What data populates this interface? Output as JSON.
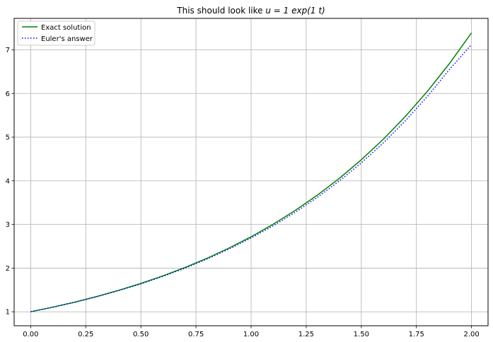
{
  "chart_data": {
    "type": "line",
    "title_prefix": "This should look like ",
    "title_math": "u = 1 exp(1 t)",
    "xlabel": "",
    "ylabel": "",
    "xlim": [
      -0.075,
      2.075
    ],
    "ylim": [
      0.68,
      7.72
    ],
    "xticks": [
      "0.00",
      "0.25",
      "0.50",
      "0.75",
      "1.00",
      "1.25",
      "1.50",
      "1.75",
      "2.00"
    ],
    "yticks": [
      "1",
      "2",
      "3",
      "4",
      "5",
      "6",
      "7"
    ],
    "grid": true,
    "legend_position": "top-left",
    "series": [
      {
        "name": "Exact solution",
        "color": "#008000",
        "style": "solid",
        "x": [
          0.0,
          0.1,
          0.2,
          0.3,
          0.4,
          0.5,
          0.6,
          0.7,
          0.8,
          0.9,
          1.0,
          1.1,
          1.2,
          1.3,
          1.4,
          1.5,
          1.6,
          1.7,
          1.8,
          1.9,
          2.0
        ],
        "y": [
          1.0,
          1.105,
          1.221,
          1.35,
          1.492,
          1.649,
          1.822,
          2.014,
          2.226,
          2.46,
          2.718,
          3.004,
          3.32,
          3.669,
          4.055,
          4.482,
          4.953,
          5.474,
          6.05,
          6.686,
          7.389
        ]
      },
      {
        "name": "Euler's answer",
        "color": "#0000ff",
        "style": "dotted",
        "x": [
          0.0,
          0.1,
          0.2,
          0.3,
          0.4,
          0.5,
          0.6,
          0.7,
          0.8,
          0.9,
          1.0,
          1.1,
          1.2,
          1.3,
          1.4,
          1.5,
          1.6,
          1.7,
          1.8,
          1.9,
          2.0
        ],
        "y": [
          1.0,
          1.104,
          1.219,
          1.346,
          1.486,
          1.64,
          1.811,
          1.999,
          2.207,
          2.436,
          2.69,
          2.969,
          3.278,
          3.619,
          3.995,
          4.41,
          4.869,
          5.375,
          5.934,
          6.551,
          7.12
        ]
      }
    ]
  }
}
